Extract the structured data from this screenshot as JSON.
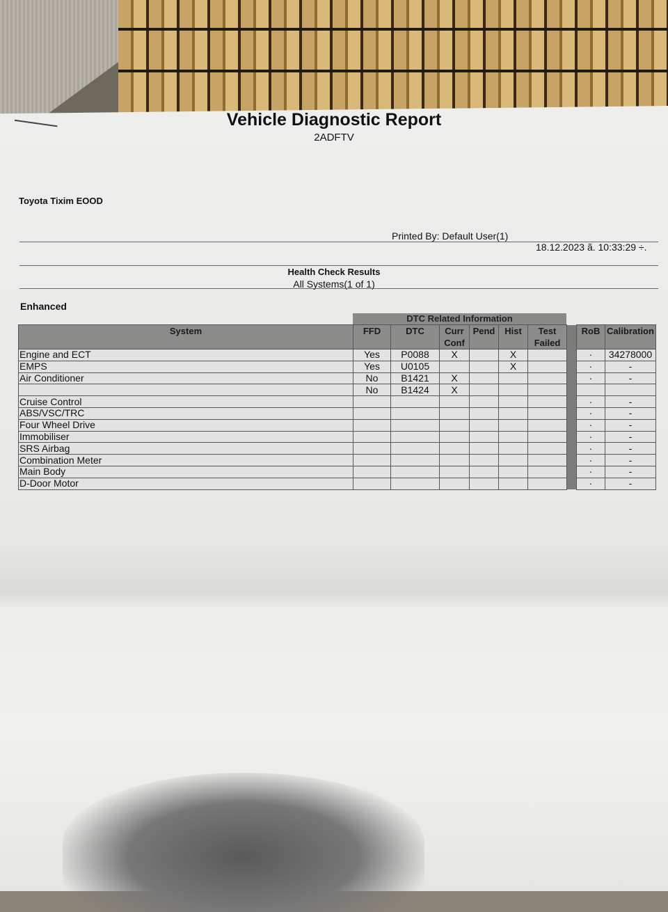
{
  "report": {
    "title": "Vehicle Diagnostic Report",
    "vin_code": "2ADFTV",
    "company": "Toyota Tixim EOOD",
    "printed_by": "Printed By: Default User(1)",
    "datetime": "18.12.2023 ã. 10:33:29 ÷.",
    "section_title": "Health Check Results",
    "section_subtitle": "All Systems(1 of 1)",
    "mode": "Enhanced"
  },
  "table": {
    "group_header": "DTC Related Information",
    "columns": [
      "System",
      "FFD",
      "DTC",
      "Curr Conf",
      "Pend",
      "Hist",
      "Test Failed",
      "RoB",
      "Calibration"
    ],
    "rows": [
      {
        "system": "Engine and ECT",
        "ffd": "Yes",
        "dtc": "P0088",
        "curr": "X",
        "pend": "",
        "hist": "X",
        "test": "",
        "rob": "·",
        "cal": "34278000"
      },
      {
        "system": "EMPS",
        "ffd": "Yes",
        "dtc": "U0105",
        "curr": "",
        "pend": "",
        "hist": "X",
        "test": "",
        "rob": "·",
        "cal": "-"
      },
      {
        "system": "Air Conditioner",
        "ffd": "No",
        "dtc": "B1421",
        "curr": "X",
        "pend": "",
        "hist": "",
        "test": "",
        "rob": "·",
        "cal": "-"
      },
      {
        "system": "",
        "ffd": "No",
        "dtc": "B1424",
        "curr": "X",
        "pend": "",
        "hist": "",
        "test": "",
        "rob": "",
        "cal": ""
      },
      {
        "system": "Cruise Control",
        "ffd": "",
        "dtc": "",
        "curr": "",
        "pend": "",
        "hist": "",
        "test": "",
        "rob": "·",
        "cal": "-"
      },
      {
        "system": "ABS/VSC/TRC",
        "ffd": "",
        "dtc": "",
        "curr": "",
        "pend": "",
        "hist": "",
        "test": "",
        "rob": "·",
        "cal": "-"
      },
      {
        "system": "Four Wheel Drive",
        "ffd": "",
        "dtc": "",
        "curr": "",
        "pend": "",
        "hist": "",
        "test": "",
        "rob": "·",
        "cal": "-"
      },
      {
        "system": "Immobiliser",
        "ffd": "",
        "dtc": "",
        "curr": "",
        "pend": "",
        "hist": "",
        "test": "",
        "rob": "·",
        "cal": "-"
      },
      {
        "system": "SRS Airbag",
        "ffd": "",
        "dtc": "",
        "curr": "",
        "pend": "",
        "hist": "",
        "test": "",
        "rob": "·",
        "cal": "-"
      },
      {
        "system": "Combination Meter",
        "ffd": "",
        "dtc": "",
        "curr": "",
        "pend": "",
        "hist": "",
        "test": "",
        "rob": "·",
        "cal": "-"
      },
      {
        "system": "Main Body",
        "ffd": "",
        "dtc": "",
        "curr": "",
        "pend": "",
        "hist": "",
        "test": "",
        "rob": "·",
        "cal": "-"
      },
      {
        "system": "D-Door Motor",
        "ffd": "",
        "dtc": "",
        "curr": "",
        "pend": "",
        "hist": "",
        "test": "",
        "rob": "·",
        "cal": "-"
      }
    ]
  }
}
